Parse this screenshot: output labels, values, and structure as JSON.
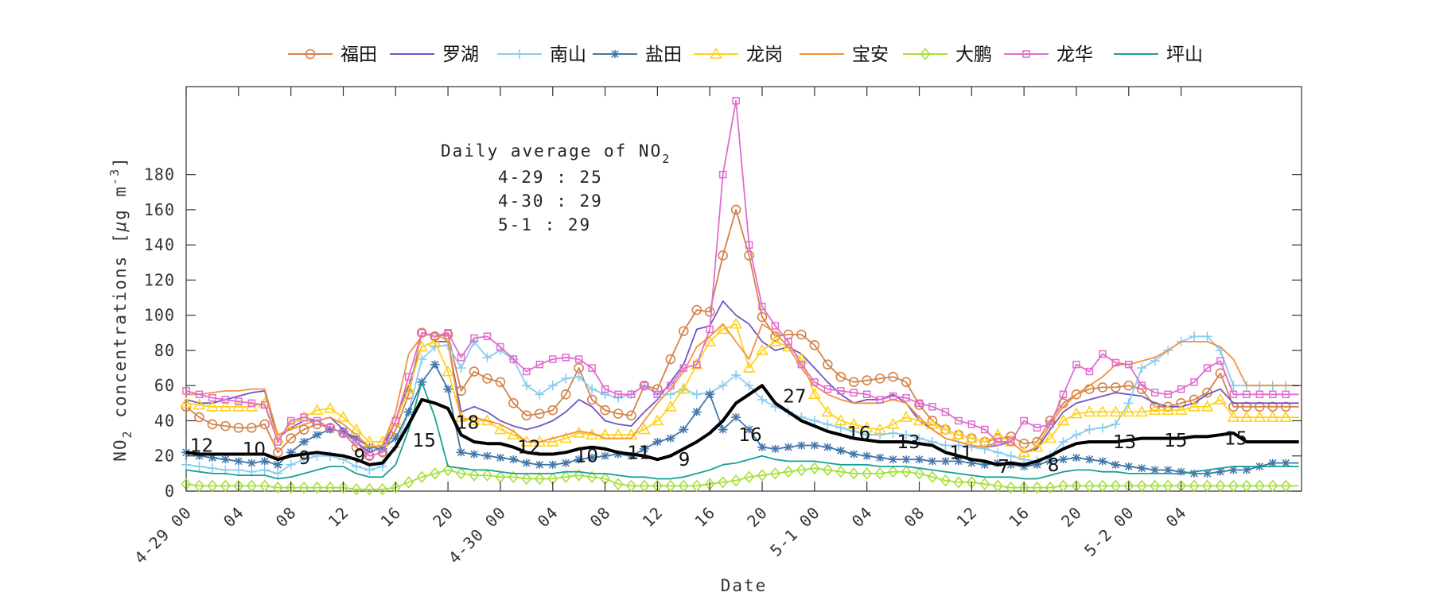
{
  "chart_data": {
    "type": "line",
    "xlabel": "Date",
    "ylabel": "NO2 concentrations [μg m-3]",
    "ylabel_parts": {
      "a": "NO",
      "a_sub": "2",
      "b": " concentrations [",
      "mu": "μ",
      "c": "g m",
      "c_sup": "-3",
      "d": "]"
    },
    "ylim": [
      0,
      230
    ],
    "xlim": [
      0,
      85.2
    ],
    "yticks": [
      0,
      20,
      40,
      60,
      80,
      100,
      120,
      140,
      160,
      180
    ],
    "xticks": [
      {
        "h": 0,
        "label": "4-29 00"
      },
      {
        "h": 4,
        "label": "04"
      },
      {
        "h": 8,
        "label": "08"
      },
      {
        "h": 12,
        "label": "12"
      },
      {
        "h": 16,
        "label": "16"
      },
      {
        "h": 20,
        "label": "20"
      },
      {
        "h": 24,
        "label": "4-30 00"
      },
      {
        "h": 28,
        "label": "04"
      },
      {
        "h": 32,
        "label": "08"
      },
      {
        "h": 36,
        "label": "12"
      },
      {
        "h": 40,
        "label": "16"
      },
      {
        "h": 44,
        "label": "20"
      },
      {
        "h": 48,
        "label": "5-1 00"
      },
      {
        "h": 52,
        "label": "04"
      },
      {
        "h": 56,
        "label": "08"
      },
      {
        "h": 60,
        "label": "12"
      },
      {
        "h": 64,
        "label": "16"
      },
      {
        "h": 68,
        "label": "20"
      },
      {
        "h": 72,
        "label": "5-2 00"
      },
      {
        "h": 76,
        "label": "04"
      }
    ],
    "grid": false,
    "legend_position": "top-center-outside",
    "annotation": {
      "title": "Daily average of NO",
      "title_sub": "2",
      "lines": [
        "4-29 : 25",
        "4-30 : 29",
        "5-1 : 29"
      ]
    },
    "x_hours": [
      0,
      1,
      2,
      3,
      4,
      5,
      6,
      7,
      8,
      9,
      10,
      11,
      12,
      13,
      14,
      15,
      16,
      17,
      18,
      19,
      20,
      21,
      22,
      23,
      24,
      25,
      26,
      27,
      28,
      29,
      30,
      31,
      32,
      33,
      34,
      35,
      36,
      37,
      38,
      39,
      40,
      41,
      42,
      43,
      44,
      45,
      46,
      47,
      48,
      49,
      50,
      51,
      52,
      53,
      54,
      55,
      56,
      57,
      58,
      59,
      60,
      61,
      62,
      63,
      64,
      65,
      66,
      67,
      68,
      69,
      70,
      71,
      72,
      73,
      74,
      75,
      76,
      77,
      78,
      79,
      80,
      81,
      82,
      83,
      84,
      85
    ],
    "series": [
      {
        "name": "福田",
        "color": "#D3834A",
        "marker": "circle",
        "values": [
          48,
          42,
          38,
          37,
          36,
          36,
          38,
          22,
          30,
          35,
          38,
          36,
          33,
          25,
          20,
          22,
          35,
          55,
          90,
          88,
          89,
          57,
          68,
          64,
          62,
          50,
          43,
          44,
          46,
          55,
          70,
          52,
          46,
          44,
          43,
          60,
          58,
          75,
          91,
          103,
          102,
          134,
          160,
          134,
          99,
          88,
          89,
          89,
          83,
          72,
          65,
          62,
          63,
          64,
          65,
          62,
          49,
          40,
          35,
          32,
          30,
          28,
          30,
          31,
          27,
          28,
          40,
          50,
          55,
          58,
          59,
          59,
          60,
          58,
          48,
          48,
          50,
          52,
          56,
          67,
          48,
          48,
          48,
          48,
          48,
          48
        ]
      },
      {
        "name": "罗湖",
        "color": "#6E55C7",
        "marker": "none",
        "values": [
          52,
          50,
          50,
          52,
          54,
          56,
          57,
          30,
          36,
          40,
          40,
          42,
          35,
          28,
          22,
          25,
          40,
          60,
          82,
          85,
          85,
          45,
          48,
          45,
          40,
          37,
          35,
          37,
          40,
          45,
          52,
          48,
          40,
          38,
          37,
          45,
          52,
          62,
          72,
          92,
          94,
          108,
          100,
          95,
          85,
          80,
          82,
          78,
          70,
          62,
          55,
          50,
          52,
          52,
          55,
          50,
          40,
          35,
          30,
          28,
          26,
          25,
          26,
          28,
          22,
          24,
          35,
          45,
          50,
          52,
          54,
          56,
          55,
          54,
          50,
          48,
          48,
          50,
          55,
          58,
          50,
          50,
          50,
          50,
          50,
          50
        ]
      },
      {
        "name": "南山",
        "color": "#88CCEE",
        "marker": "plus",
        "values": [
          15,
          14,
          13,
          12,
          12,
          11,
          12,
          10,
          15,
          18,
          20,
          20,
          18,
          14,
          12,
          14,
          25,
          45,
          75,
          82,
          83,
          70,
          85,
          76,
          80,
          75,
          60,
          55,
          60,
          64,
          65,
          58,
          55,
          53,
          55,
          60,
          55,
          55,
          58,
          55,
          56,
          60,
          66,
          60,
          52,
          48,
          45,
          42,
          40,
          38,
          36,
          34,
          32,
          32,
          33,
          32,
          30,
          28,
          26,
          26,
          25,
          24,
          22,
          20,
          18,
          17,
          20,
          28,
          32,
          35,
          36,
          38,
          50,
          70,
          74,
          80,
          85,
          88,
          88,
          80,
          60,
          60,
          60,
          60,
          60,
          60
        ]
      },
      {
        "name": "盐田",
        "color": "#4477AA",
        "marker": "star",
        "values": [
          22,
          20,
          19,
          18,
          17,
          16,
          17,
          15,
          22,
          28,
          32,
          35,
          34,
          30,
          25,
          24,
          30,
          45,
          62,
          72,
          58,
          22,
          21,
          20,
          19,
          18,
          16,
          15,
          15,
          16,
          18,
          19,
          20,
          21,
          20,
          24,
          28,
          30,
          35,
          45,
          55,
          35,
          42,
          35,
          25,
          24,
          25,
          26,
          26,
          25,
          23,
          21,
          20,
          19,
          18,
          18,
          18,
          17,
          17,
          17,
          16,
          15,
          16,
          15,
          14,
          15,
          17,
          18,
          19,
          18,
          17,
          15,
          14,
          13,
          12,
          12,
          11,
          10,
          10,
          11,
          12,
          12,
          14,
          16,
          16,
          16
        ]
      },
      {
        "name": "龙岗",
        "color": "#FFD21F",
        "marker": "triangle",
        "values": [
          50,
          49,
          48,
          48,
          48,
          48,
          50,
          30,
          38,
          42,
          46,
          47,
          42,
          35,
          28,
          28,
          40,
          58,
          82,
          85,
          68,
          42,
          40,
          40,
          35,
          32,
          28,
          28,
          28,
          30,
          33,
          32,
          32,
          32,
          32,
          35,
          40,
          48,
          58,
          72,
          85,
          92,
          95,
          70,
          80,
          85,
          82,
          75,
          55,
          45,
          40,
          38,
          36,
          35,
          38,
          42,
          40,
          38,
          35,
          32,
          30,
          28,
          32,
          28,
          22,
          25,
          30,
          40,
          44,
          45,
          45,
          45,
          45,
          45,
          46,
          46,
          46,
          48,
          48,
          52,
          42,
          42,
          42,
          42,
          42,
          42
        ]
      },
      {
        "name": "宝安",
        "color": "#F2913E",
        "marker": "none",
        "values": [
          55,
          55,
          56,
          57,
          57,
          58,
          58,
          32,
          35,
          38,
          40,
          42,
          38,
          32,
          25,
          26,
          45,
          78,
          88,
          90,
          85,
          40,
          42,
          40,
          38,
          34,
          28,
          28,
          30,
          32,
          34,
          33,
          30,
          30,
          30,
          40,
          50,
          58,
          68,
          82,
          88,
          95,
          85,
          75,
          95,
          90,
          82,
          70,
          60,
          55,
          52,
          50,
          50,
          50,
          52,
          50,
          42,
          35,
          30,
          28,
          26,
          25,
          28,
          28,
          22,
          25,
          38,
          48,
          55,
          60,
          65,
          72,
          72,
          74,
          76,
          80,
          85,
          85,
          85,
          82,
          75,
          60,
          60,
          60,
          60,
          60
        ]
      },
      {
        "name": "大鹏",
        "color": "#A6E03A",
        "marker": "diamond",
        "values": [
          4,
          3,
          3,
          3,
          3,
          3,
          3,
          2,
          2,
          2,
          2,
          2,
          2,
          1,
          1,
          1,
          2,
          5,
          8,
          10,
          12,
          10,
          9,
          9,
          8,
          8,
          7,
          7,
          7,
          8,
          9,
          8,
          7,
          4,
          3,
          3,
          3,
          3,
          3,
          3,
          4,
          5,
          6,
          8,
          9,
          10,
          11,
          12,
          13,
          12,
          11,
          10,
          10,
          10,
          11,
          11,
          10,
          8,
          6,
          5,
          5,
          4,
          3,
          2,
          2,
          2,
          2,
          3,
          3,
          3,
          3,
          3,
          3,
          3,
          3,
          3,
          3,
          3,
          3,
          3,
          3,
          3,
          3,
          3,
          3,
          3
        ]
      },
      {
        "name": "龙华",
        "color": "#E06CCF",
        "marker": "square",
        "values": [
          57,
          55,
          53,
          52,
          51,
          50,
          49,
          28,
          40,
          42,
          40,
          36,
          33,
          28,
          20,
          22,
          40,
          65,
          90,
          88,
          90,
          76,
          87,
          88,
          82,
          75,
          68,
          72,
          75,
          76,
          75,
          70,
          58,
          55,
          55,
          60,
          55,
          60,
          70,
          72,
          92,
          180,
          222,
          140,
          105,
          94,
          85,
          72,
          62,
          58,
          57,
          56,
          55,
          52,
          54,
          53,
          50,
          48,
          45,
          40,
          38,
          35,
          28,
          28,
          40,
          36,
          38,
          55,
          72,
          68,
          78,
          73,
          72,
          60,
          56,
          55,
          58,
          62,
          70,
          74,
          55,
          55,
          55,
          55,
          55,
          55
        ]
      },
      {
        "name": "坪山",
        "color": "#1AA094",
        "marker": "none",
        "values": [
          12,
          11,
          10,
          10,
          9,
          9,
          9,
          7,
          8,
          10,
          12,
          14,
          14,
          10,
          8,
          8,
          15,
          35,
          62,
          42,
          14,
          13,
          12,
          12,
          11,
          10,
          10,
          10,
          10,
          11,
          11,
          10,
          10,
          9,
          8,
          8,
          7,
          7,
          8,
          10,
          12,
          15,
          16,
          18,
          20,
          18,
          17,
          17,
          17,
          16,
          15,
          15,
          15,
          14,
          14,
          14,
          13,
          12,
          11,
          10,
          9,
          8,
          8,
          8,
          7,
          7,
          9,
          11,
          12,
          12,
          11,
          11,
          10,
          10,
          10,
          10,
          10,
          11,
          12,
          13,
          14,
          14,
          14,
          14,
          14,
          14
        ]
      },
      {
        "name": "",
        "color": "#000000",
        "marker": "none",
        "role": "mean",
        "values": [
          22,
          21,
          21,
          21,
          21,
          21,
          21,
          18,
          20,
          21,
          22,
          21,
          20,
          18,
          15,
          16,
          25,
          38,
          52,
          50,
          47,
          32,
          28,
          27,
          27,
          25,
          22,
          21,
          21,
          22,
          24,
          25,
          24,
          22,
          21,
          20,
          18,
          20,
          24,
          28,
          33,
          40,
          50,
          55,
          60,
          50,
          45,
          40,
          37,
          34,
          32,
          30,
          29,
          28,
          28,
          28,
          27,
          26,
          22,
          20,
          18,
          17,
          15,
          16,
          15,
          17,
          20,
          24,
          27,
          28,
          28,
          28,
          29,
          30,
          30,
          30,
          30,
          31,
          31,
          32,
          33,
          28,
          28,
          28,
          28,
          28
        ]
      }
    ],
    "daily_labels": [
      {
        "h": 0.3,
        "text": "12",
        "y": 26
      },
      {
        "h": 4.3,
        "text": "10",
        "y": 24
      },
      {
        "h": 8.6,
        "text": "9",
        "y": 19
      },
      {
        "h": 12.8,
        "text": "9",
        "y": 20
      },
      {
        "h": 17.3,
        "text": "15",
        "y": 29
      },
      {
        "h": 20.6,
        "text": "18",
        "y": 39
      },
      {
        "h": 25.3,
        "text": "12",
        "y": 25
      },
      {
        "h": 29.7,
        "text": "10",
        "y": 20
      },
      {
        "h": 33.7,
        "text": "11",
        "y": 22
      },
      {
        "h": 37.6,
        "text": "9",
        "y": 18
      },
      {
        "h": 42.2,
        "text": "16",
        "y": 32
      },
      {
        "h": 45.6,
        "text": "27",
        "y": 54
      },
      {
        "h": 50.5,
        "text": "16",
        "y": 33
      },
      {
        "h": 54.3,
        "text": "13",
        "y": 28
      },
      {
        "h": 58.3,
        "text": "11",
        "y": 22
      },
      {
        "h": 62.0,
        "text": "7",
        "y": 14
      },
      {
        "h": 65.8,
        "text": "8",
        "y": 15
      },
      {
        "h": 70.8,
        "text": "13",
        "y": 28
      },
      {
        "h": 74.7,
        "text": "15",
        "y": 29
      },
      {
        "h": 79.3,
        "text": "15",
        "y": 30
      }
    ]
  }
}
